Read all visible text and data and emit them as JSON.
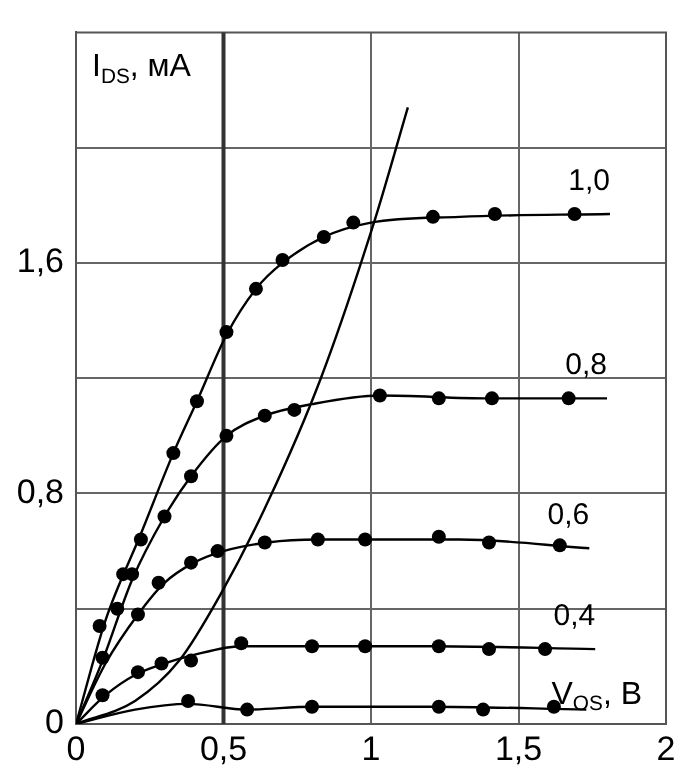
{
  "chart_data": {
    "type": "line",
    "xlabel": "V$_{OS}$, В",
    "ylabel": "I$_{DS}$, мА",
    "xlim": [
      0,
      2
    ],
    "ylim": [
      0,
      2.4
    ],
    "xticks": [
      0,
      {
        "value": 0.5,
        "label": "0,5"
      },
      1,
      {
        "value": 1.5,
        "label": "1,5"
      },
      2
    ],
    "yticks": [
      0,
      {
        "value": 0.4,
        "label": null
      },
      {
        "value": 0.8,
        "label": "0,8"
      },
      {
        "value": 1.2,
        "label": null
      },
      {
        "value": 1.6,
        "label": "1,6"
      },
      {
        "value": 2.0,
        "label": null
      }
    ],
    "grid": true,
    "legend": false,
    "ref_lines": [
      {
        "axis": "x",
        "value": 0.5
      }
    ],
    "series": [
      {
        "name": "1,0",
        "marker": "none",
        "color": "#000000",
        "x": [
          0,
          0.1,
          0.22,
          0.33,
          0.41,
          0.51,
          0.61,
          0.7,
          0.84,
          1.0,
          1.3,
          1.81
        ],
        "values": [
          0,
          0.36,
          0.66,
          0.94,
          1.12,
          1.35,
          1.51,
          1.6,
          1.69,
          1.74,
          1.76,
          1.77
        ]
      },
      {
        "type": "scatter",
        "marker": "circle",
        "color": "#000000",
        "x": [
          0.08,
          0.16,
          0.22,
          0.33,
          0.41,
          0.51,
          0.61,
          0.7,
          0.84,
          0.94,
          1.21,
          1.42,
          1.69
        ],
        "values": [
          0.34,
          0.52,
          0.64,
          0.94,
          1.12,
          1.36,
          1.51,
          1.61,
          1.69,
          1.74,
          1.76,
          1.77,
          1.77
        ]
      },
      {
        "name": "0,8",
        "marker": "none",
        "color": "#000000",
        "x": [
          0,
          0.09,
          0.19,
          0.3,
          0.39,
          0.51,
          0.64,
          0.8,
          1.03,
          1.4,
          1.8
        ],
        "values": [
          0,
          0.22,
          0.5,
          0.72,
          0.86,
          1.0,
          1.07,
          1.11,
          1.14,
          1.13,
          1.13
        ]
      },
      {
        "type": "scatter",
        "marker": "circle",
        "color": "#000000",
        "x": [
          0.14,
          0.19,
          0.3,
          0.39,
          0.51,
          0.64,
          0.74,
          1.03,
          1.23,
          1.41,
          1.67
        ],
        "values": [
          0.4,
          0.52,
          0.72,
          0.86,
          1.0,
          1.07,
          1.09,
          1.14,
          1.13,
          1.13,
          1.13
        ]
      },
      {
        "name": "0,6",
        "marker": "none",
        "color": "#000000",
        "x": [
          0,
          0.1,
          0.21,
          0.3,
          0.4,
          0.5,
          0.65,
          0.82,
          1.0,
          1.3,
          1.74
        ],
        "values": [
          0,
          0.21,
          0.38,
          0.49,
          0.56,
          0.6,
          0.63,
          0.64,
          0.64,
          0.64,
          0.61
        ]
      },
      {
        "type": "scatter",
        "marker": "circle",
        "color": "#000000",
        "x": [
          0.09,
          0.21,
          0.28,
          0.39,
          0.48,
          0.64,
          0.82,
          0.98,
          1.23,
          1.4,
          1.64
        ],
        "values": [
          0.23,
          0.38,
          0.49,
          0.56,
          0.6,
          0.63,
          0.64,
          0.64,
          0.65,
          0.63,
          0.62
        ]
      },
      {
        "name": "0,4",
        "marker": "none",
        "color": "#000000",
        "x": [
          0,
          0.1,
          0.2,
          0.3,
          0.4,
          0.56,
          0.8,
          1.2,
          1.76
        ],
        "values": [
          0,
          0.1,
          0.17,
          0.21,
          0.24,
          0.27,
          0.27,
          0.27,
          0.26
        ]
      },
      {
        "type": "scatter",
        "marker": "circle",
        "color": "#000000",
        "x": [
          0.09,
          0.21,
          0.29,
          0.39,
          0.56,
          0.8,
          0.98,
          1.23,
          1.4,
          1.59
        ],
        "values": [
          0.1,
          0.18,
          0.21,
          0.22,
          0.28,
          0.27,
          0.27,
          0.27,
          0.26,
          0.26
        ]
      },
      {
        "marker": "none",
        "color": "#000000",
        "x": [
          0,
          0.2,
          0.38,
          0.58,
          0.8,
          1.2,
          1.73
        ],
        "values": [
          0,
          0.05,
          0.07,
          0.05,
          0.06,
          0.06,
          0.05
        ]
      },
      {
        "type": "scatter",
        "marker": "circle",
        "color": "#000000",
        "x": [
          0.38,
          0.58,
          0.8,
          1.23,
          1.38,
          1.62
        ],
        "values": [
          0.08,
          0.05,
          0.06,
          0.06,
          0.05,
          0.06
        ]
      },
      {
        "marker": "none",
        "color": "#000000",
        "x": [
          0,
          0.2,
          0.35,
          0.49,
          0.65,
          0.83,
          1.01,
          1.125
        ],
        "values": [
          0,
          0.08,
          0.22,
          0.45,
          0.77,
          1.2,
          1.74,
          2.14
        ]
      }
    ]
  }
}
